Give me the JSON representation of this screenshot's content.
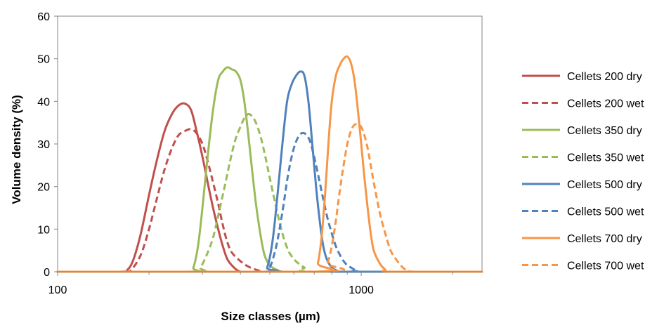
{
  "chart_data": {
    "type": "line",
    "title": "",
    "xlabel": "Size classes (µm)",
    "ylabel": "Volume density (%)",
    "xscale": "log",
    "xlim": [
      100,
      2500
    ],
    "ylim": [
      0,
      60
    ],
    "yticks": [
      0,
      10,
      20,
      30,
      40,
      50,
      60
    ],
    "xticks": [
      100,
      1000
    ],
    "xtick_labels": [
      "100",
      "1000"
    ],
    "grid": false,
    "legend_position": "right",
    "series": [
      {
        "name": "Cellets 200 dry",
        "color": "#C0504D",
        "dash": "solid",
        "x": [
          100,
          160,
          170,
          178,
          188,
          200,
          212,
          225,
          238,
          250,
          262,
          275,
          287,
          300,
          312,
          325,
          338,
          350,
          362,
          375,
          388,
          400,
          412,
          425,
          2500
        ],
        "y": [
          0,
          0,
          0.5,
          3,
          9,
          18,
          26,
          33,
          37,
          39,
          39.5,
          38,
          33,
          27,
          21,
          15,
          10,
          6,
          3,
          1.5,
          0.5,
          0,
          0,
          0,
          0
        ]
      },
      {
        "name": "Cellets 200 wet",
        "color": "#C0504D",
        "dash": "dashed",
        "x": [
          100,
          165,
          175,
          188,
          200,
          212,
          225,
          238,
          250,
          262,
          275,
          287,
          300,
          312,
          325,
          338,
          350,
          362,
          375,
          400,
          425,
          450,
          475,
          500,
          2500
        ],
        "y": [
          0,
          0,
          0.5,
          4,
          10,
          17,
          24,
          29,
          32,
          33,
          33.5,
          32.5,
          30,
          26,
          21,
          16,
          11,
          7,
          4.5,
          2.5,
          1.2,
          0.5,
          0,
          0,
          0
        ]
      },
      {
        "name": "Cellets 350 dry",
        "color": "#9BBB59",
        "dash": "solid",
        "x": [
          100,
          270,
          280,
          290,
          300,
          312,
          325,
          338,
          350,
          362,
          375,
          387,
          400,
          412,
          425,
          437,
          450,
          465,
          480,
          500,
          525,
          550,
          575,
          600,
          2500
        ],
        "y": [
          0,
          0,
          1,
          6,
          15,
          27,
          38,
          45,
          47,
          48,
          47.5,
          47,
          45,
          40,
          32,
          24,
          16,
          9,
          4,
          1.5,
          0.5,
          0,
          0,
          0,
          0
        ]
      },
      {
        "name": "Cellets 350 wet",
        "color": "#9BBB59",
        "dash": "dashed",
        "x": [
          100,
          280,
          295,
          310,
          325,
          340,
          355,
          370,
          385,
          400,
          412,
          425,
          437,
          450,
          465,
          480,
          500,
          525,
          550,
          575,
          600,
          625,
          650,
          700,
          2500
        ],
        "y": [
          0,
          0,
          1,
          4,
          8,
          14,
          20,
          26,
          31,
          34,
          36,
          37,
          36.5,
          35,
          32,
          28,
          22,
          15,
          9,
          5,
          3,
          1.8,
          1,
          0,
          0
        ]
      },
      {
        "name": "Cellets 500 dry",
        "color": "#4F81BD",
        "dash": "solid",
        "x": [
          100,
          470,
          490,
          510,
          530,
          550,
          570,
          590,
          610,
          630,
          650,
          670,
          690,
          710,
          730,
          750,
          770,
          800,
          830,
          860,
          2500
        ],
        "y": [
          0,
          0,
          1,
          7,
          18,
          30,
          40,
          44,
          46,
          47,
          46,
          40,
          30,
          20,
          12,
          6,
          3,
          1,
          0.3,
          0,
          0
        ]
      },
      {
        "name": "Cellets 500 wet",
        "color": "#4F81BD",
        "dash": "dashed",
        "x": [
          100,
          480,
          500,
          525,
          550,
          575,
          600,
          625,
          650,
          675,
          700,
          725,
          750,
          775,
          800,
          825,
          850,
          875,
          900,
          925,
          950,
          975,
          1000,
          2500
        ],
        "y": [
          0,
          0,
          1,
          6,
          14,
          23,
          29,
          32,
          32.5,
          31,
          27,
          22,
          17,
          12.5,
          9,
          6,
          4,
          2.5,
          1.5,
          1,
          0.5,
          0.2,
          0,
          0
        ]
      },
      {
        "name": "Cellets 700 dry",
        "color": "#F79646",
        "dash": "solid",
        "x": [
          100,
          700,
          720,
          740,
          760,
          780,
          800,
          825,
          850,
          875,
          900,
          925,
          950,
          975,
          1000,
          1025,
          1050,
          1075,
          1100,
          1150,
          1200,
          1250,
          2500
        ],
        "y": [
          0,
          0,
          2,
          8,
          18,
          30,
          40,
          46,
          48.5,
          50,
          50.5,
          49,
          45,
          38,
          30,
          22,
          15,
          9,
          5,
          2,
          0.5,
          0,
          0
        ]
      },
      {
        "name": "Cellets 700 wet",
        "color": "#F79646",
        "dash": "dashed",
        "x": [
          100,
          750,
          775,
          800,
          825,
          850,
          875,
          900,
          925,
          950,
          975,
          1000,
          1025,
          1050,
          1075,
          1100,
          1150,
          1200,
          1250,
          1300,
          1350,
          1400,
          1500,
          2500
        ],
        "y": [
          0,
          0,
          2,
          6,
          12,
          19,
          25,
          30,
          33,
          34.5,
          34.5,
          34,
          32,
          29,
          25,
          21,
          14,
          9,
          5,
          3,
          1.5,
          0.5,
          0,
          0
        ]
      }
    ]
  }
}
